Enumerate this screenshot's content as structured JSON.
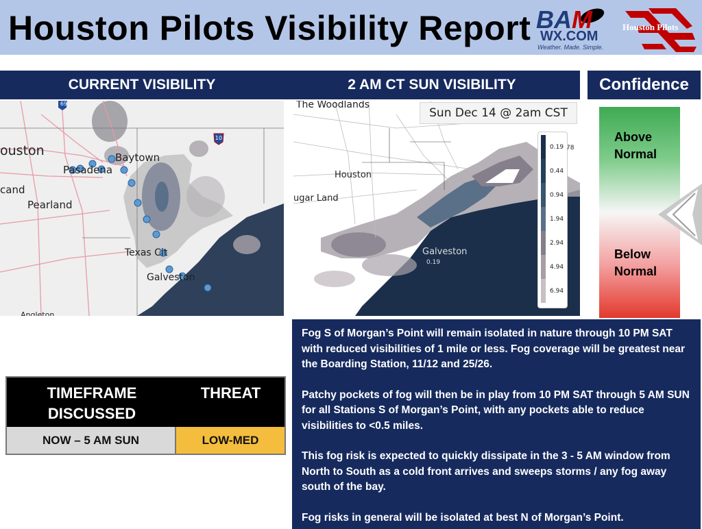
{
  "header": {
    "title": "Houston Pilots Visibility Report",
    "bam_logo": {
      "word_main": "BA",
      "word_m": "M",
      "site": "WX.COM",
      "tagline": "Weather. Made. Simple."
    },
    "pilots_logo": {
      "text": "Houston Pilots"
    }
  },
  "current_panel": {
    "title": "CURRENT VISIBILITY",
    "labels": [
      "ouston",
      "Pasadena",
      "Baytown",
      "cand",
      "Pearland",
      "Texas Cit",
      "Galveston",
      "Angleton"
    ],
    "highway_shields": [
      "69",
      "10"
    ]
  },
  "forecast_panel": {
    "title": "2 AM CT SUN VISIBILITY",
    "timestamp": "Sun Dec 14 @ 2am CST",
    "labels": [
      "The Woodlands",
      "Houston",
      "ugar Land",
      "Galveston"
    ],
    "small_values": [
      "78",
      "0.19"
    ],
    "legend": [
      {
        "value": "0.19",
        "color": "#1b2f4b"
      },
      {
        "value": "0.44",
        "color": "#25405f"
      },
      {
        "value": "0.94",
        "color": "#385571"
      },
      {
        "value": "1.94",
        "color": "#5a6f88"
      },
      {
        "value": "2.94",
        "color": "#857f8c"
      },
      {
        "value": "4.94",
        "color": "#a89ea7"
      },
      {
        "value": "6.94",
        "color": "#c7bfc5"
      }
    ]
  },
  "confidence": {
    "title": "Confidence",
    "above": "Above Normal",
    "above_line1": "Above",
    "above_line2": "Normal",
    "below_line1": "Below",
    "below_line2": "Normal",
    "level": "slightly below middle",
    "colors": {
      "top": "#3faa53",
      "mid": "#f6f6f6",
      "bottom": "#e2392d"
    }
  },
  "threat_table": {
    "col1_header_line1": "TIMEFRAME",
    "col1_header_line2": "DISCUSSED",
    "col2_header": "THREAT",
    "timeframe": "NOW – 5 AM SUN",
    "threat": "LOW-MED",
    "threat_color": "#f4bd3d"
  },
  "discussion": {
    "paragraphs": [
      "Fog S of Morgan’s Point will remain isolated in nature through 10 PM SAT with reduced visibilities of 1 mile or less. Fog coverage will be greatest near the Boarding Station, 11/12 and 25/26.",
      "Patchy pockets of fog will then be in play from 10 PM SAT through 5 AM SUN for all Stations S of Morgan’s Point, with any pockets able to reduce visibilities to <0.5 miles.",
      "This fog risk is expected to quickly dissipate in the 3 - 5 AM window from North to South as a cold front arrives and sweeps storms / any fog away south of the bay.",
      "Fog risks in general will be isolated at best N of Morgan’s Point."
    ]
  }
}
